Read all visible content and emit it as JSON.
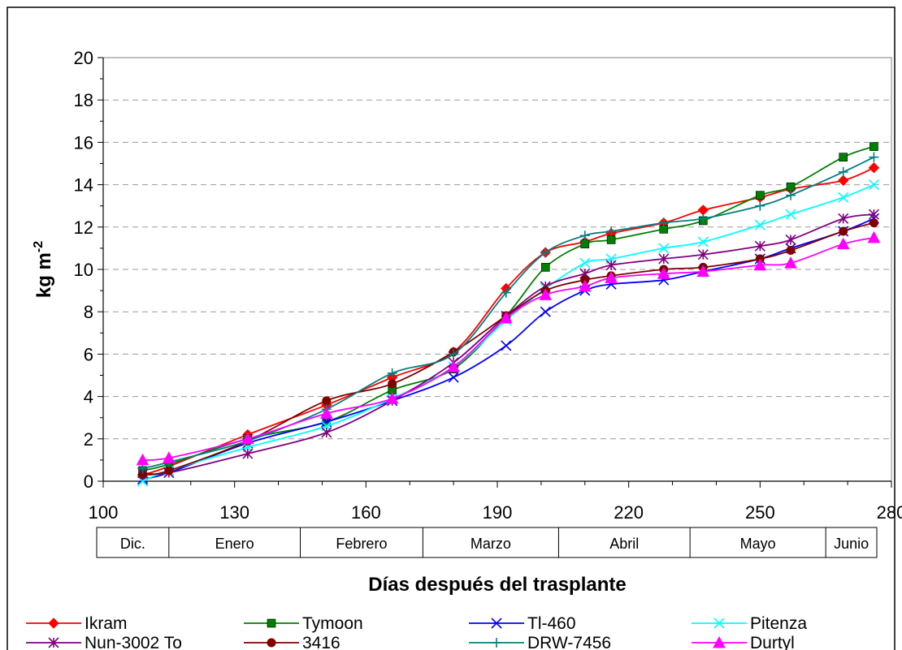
{
  "chart_data": {
    "type": "line",
    "xlabel": "Días después del trasplante",
    "ylabel_base": "kg m",
    "ylabel_sup": "-2",
    "xlim": [
      100,
      280
    ],
    "ylim": [
      0,
      20
    ],
    "xticks": [
      100,
      130,
      160,
      190,
      220,
      250,
      280
    ],
    "yticks": [
      0,
      2,
      4,
      6,
      8,
      10,
      12,
      14,
      16,
      18,
      20
    ],
    "grid": "horizontal dashed",
    "months": [
      {
        "label": "Dic.",
        "from": 100,
        "to": 115
      },
      {
        "label": "Enero",
        "from": 115,
        "to": 145
      },
      {
        "label": "Febrero",
        "from": 145,
        "to": 173
      },
      {
        "label": "Marzo",
        "from": 173,
        "to": 204
      },
      {
        "label": "Abril",
        "from": 204,
        "to": 234
      },
      {
        "label": "Mayo",
        "from": 234,
        "to": 265
      },
      {
        "label": "Junio",
        "from": 265,
        "to": 280
      }
    ],
    "x": [
      109,
      115,
      133,
      151,
      166,
      180,
      192,
      201,
      210,
      216,
      228,
      237,
      250,
      257,
      269,
      276
    ],
    "series": [
      {
        "name": "Ikram",
        "color": "#ff0000",
        "marker": "diamond",
        "values": [
          0.3,
          0.7,
          2.2,
          3.6,
          4.9,
          6.1,
          9.1,
          10.8,
          11.3,
          11.7,
          12.2,
          12.8,
          13.4,
          13.8,
          14.2,
          14.8
        ]
      },
      {
        "name": "Tymoon",
        "color": "#008000",
        "marker": "square",
        "values": [
          0.5,
          0.8,
          2.0,
          2.8,
          4.3,
          5.3,
          7.8,
          10.1,
          11.2,
          11.4,
          11.9,
          12.3,
          13.5,
          13.9,
          15.3,
          15.8
        ]
      },
      {
        "name": "Tl-460",
        "color": "#0000ff",
        "marker": "x",
        "values": [
          0.1,
          0.4,
          1.8,
          2.8,
          3.8,
          4.9,
          6.4,
          8.0,
          9.0,
          9.3,
          9.5,
          9.9,
          10.5,
          11.0,
          11.8,
          12.4
        ]
      },
      {
        "name": "Pitenza",
        "color": "#00ffff",
        "marker": "x",
        "values": [
          0.0,
          0.5,
          1.6,
          2.6,
          3.9,
          5.4,
          7.6,
          9.1,
          10.3,
          10.5,
          11.0,
          11.3,
          12.1,
          12.6,
          13.4,
          14.0
        ]
      },
      {
        "name": "Nun-3002 To",
        "color": "#800080",
        "marker": "star",
        "values": [
          0.4,
          0.4,
          1.3,
          2.3,
          3.8,
          5.6,
          7.8,
          9.2,
          9.8,
          10.2,
          10.5,
          10.7,
          11.1,
          11.4,
          12.4,
          12.6
        ]
      },
      {
        "name": "3416",
        "color": "#800000",
        "marker": "circle",
        "values": [
          0.3,
          0.5,
          1.9,
          3.8,
          4.6,
          6.1,
          7.8,
          9.0,
          9.5,
          9.7,
          10.0,
          10.1,
          10.5,
          10.9,
          11.8,
          12.2
        ]
      },
      {
        "name": "DRW-7456",
        "color": "#008080",
        "marker": "plus",
        "values": [
          0.6,
          0.9,
          1.9,
          3.4,
          5.1,
          6.0,
          8.9,
          10.8,
          11.6,
          11.8,
          12.2,
          12.4,
          13.0,
          13.5,
          14.6,
          15.3
        ]
      },
      {
        "name": "Durtyl",
        "color": "#ff00ff",
        "marker": "triangle",
        "values": [
          1.0,
          1.1,
          2.0,
          3.2,
          3.9,
          5.4,
          7.7,
          8.8,
          9.2,
          9.6,
          9.8,
          9.9,
          10.2,
          10.3,
          11.2,
          11.5
        ]
      }
    ]
  }
}
